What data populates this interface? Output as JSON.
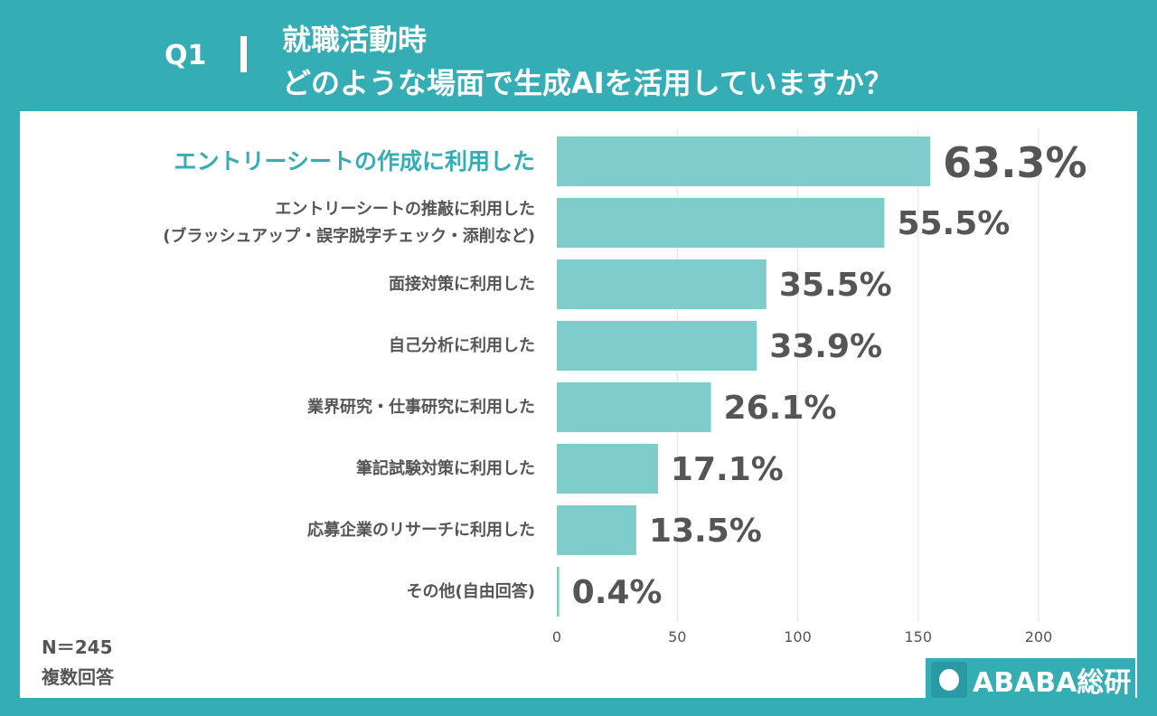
{
  "header": {
    "question_number": "Q1",
    "title_line1": "就職活動時",
    "title_line2": "どのような場面で生成AIを活用していますか？"
  },
  "notes": {
    "sample": "N＝245",
    "type": "複数回答"
  },
  "logo": {
    "text": "ABABA総研"
  },
  "colors": {
    "background": "#35adb5",
    "bar": "#7ecdcb",
    "highlight_label": "#35adb5",
    "value_label": "#555555"
  },
  "chart_data": {
    "type": "bar",
    "orientation": "horizontal",
    "categories": [
      "エントリーシートの作成に利用した",
      "エントリーシートの推敲に利用した\n(ブラッシュアップ・誤字脱字チェック・添削など)",
      "面接対策に利用した",
      "自己分析に利用した",
      "業界研究・仕事研究に利用した",
      "筆記試験対策に利用した",
      "応募企業のリサーチに利用した",
      "その他(自由回答)"
    ],
    "values": [
      155,
      136,
      87,
      83,
      64,
      42,
      33,
      1
    ],
    "data_labels": [
      "63.3%",
      "55.5%",
      "35.5%",
      "33.9%",
      "26.1%",
      "17.1%",
      "13.5%",
      "0.4%"
    ],
    "xlim": [
      0,
      200
    ],
    "xticks": [
      "0",
      "50",
      "100",
      "150",
      "200"
    ],
    "grid": true
  }
}
